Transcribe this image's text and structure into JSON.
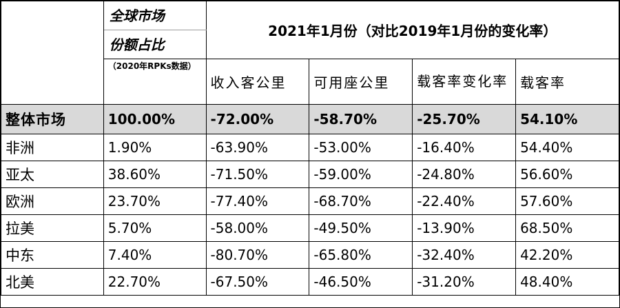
{
  "header": {
    "share_title_line1": "全球市场",
    "share_title_line2": "份额占比",
    "share_note": "（2020年RPKs数据）",
    "group_title": "2021年1月份（对比2019年1月份的变化率）",
    "columns": [
      "收入客公里",
      "可用座公里",
      "载客率变化率",
      "载客率"
    ]
  },
  "total_row": {
    "region": "整体市场",
    "share": "100.00%",
    "rpk": "-72.00%",
    "ask": "-58.70%",
    "plf_change": "-25.70%",
    "plf": "54.10%"
  },
  "rows": [
    {
      "region": "非洲",
      "share": "1.90%",
      "rpk": "-63.90%",
      "ask": "-53.00%",
      "plf_change": "-16.40%",
      "plf": "54.40%"
    },
    {
      "region": "亚太",
      "share": "38.60%",
      "rpk": "-71.50%",
      "ask": "-59.00%",
      "plf_change": "-24.80%",
      "plf": "56.60%"
    },
    {
      "region": "欧洲",
      "share": "23.70%",
      "rpk": "-77.40%",
      "ask": "-68.70%",
      "plf_change": "-22.40%",
      "plf": "57.60%"
    },
    {
      "region": "拉美",
      "share": "5.70%",
      "rpk": "-58.00%",
      "ask": "-49.50%",
      "plf_change": "-13.90%",
      "plf": "68.50%"
    },
    {
      "region": "中东",
      "share": "7.40%",
      "rpk": "-80.70%",
      "ask": "-65.80%",
      "plf_change": "-32.40%",
      "plf": "42.20%"
    },
    {
      "region": "北美",
      "share": "22.70%",
      "rpk": "-67.50%",
      "ask": "-46.50%",
      "plf_change": "-31.20%",
      "plf": "48.40%"
    }
  ]
}
